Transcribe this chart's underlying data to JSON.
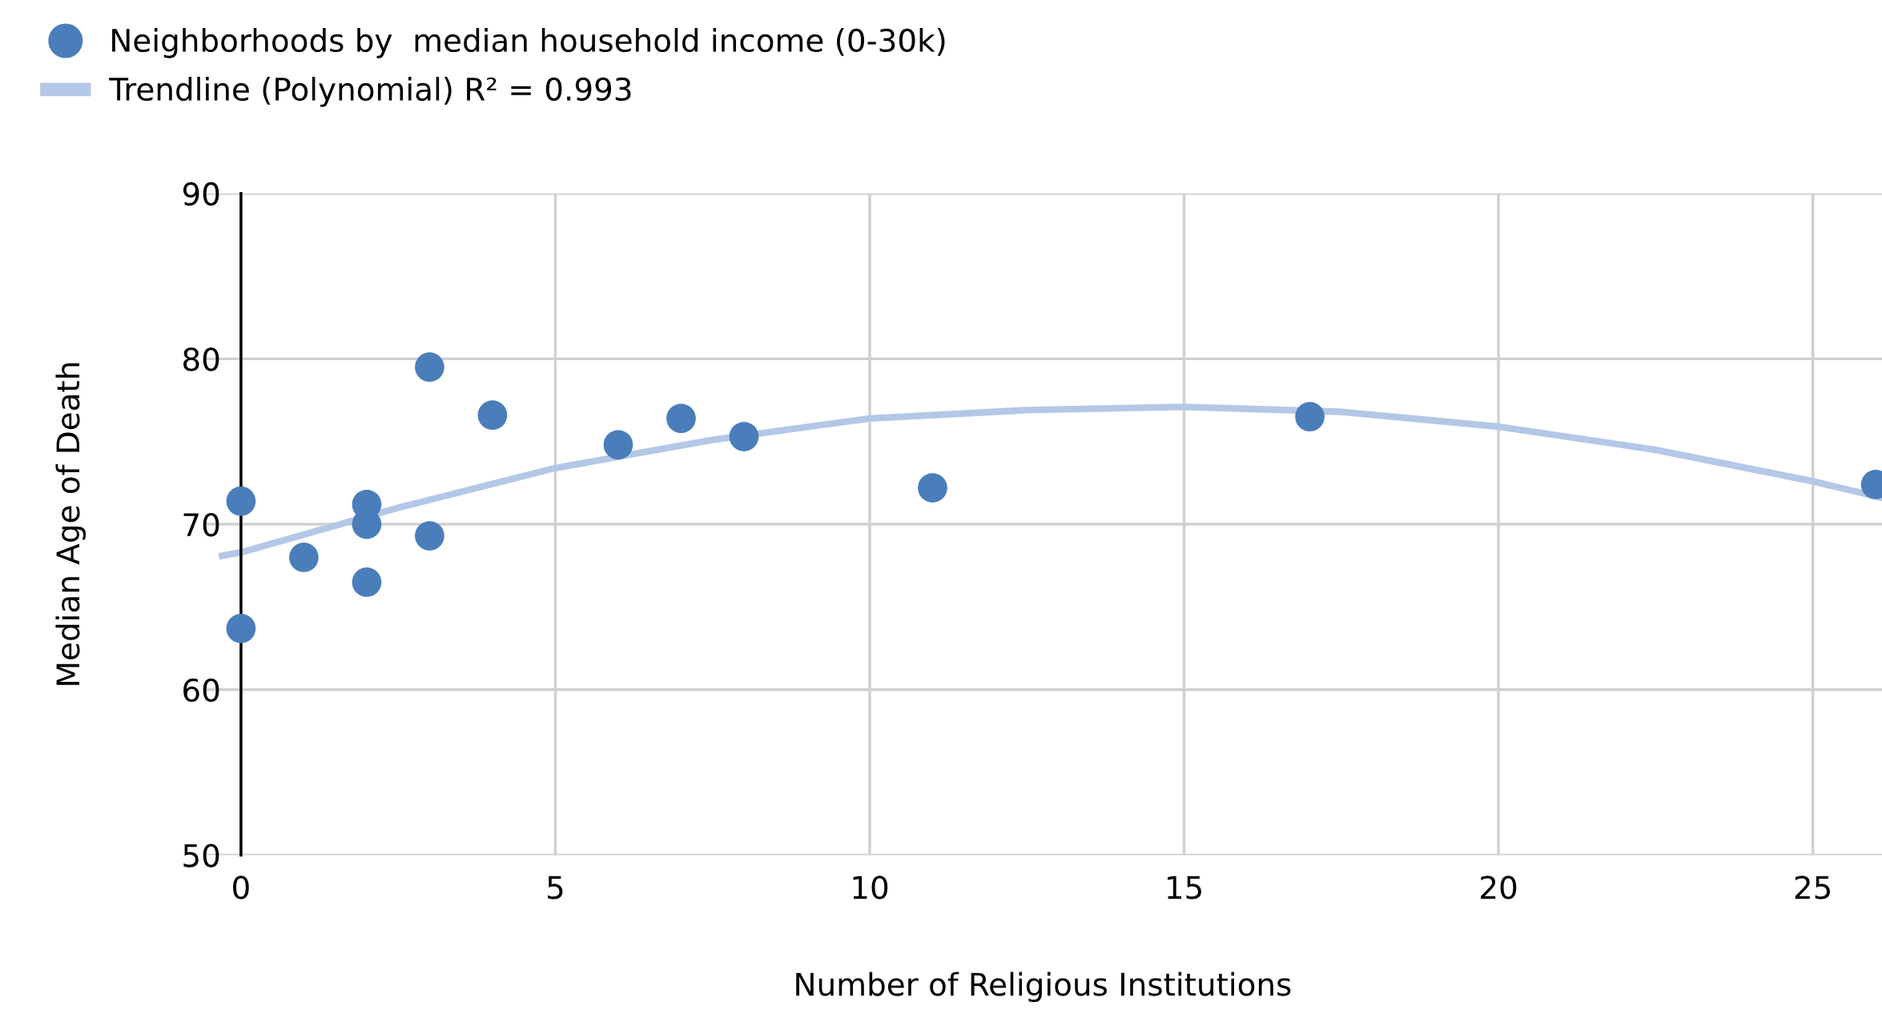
{
  "chart_data": {
    "type": "scatter",
    "xlabel": "Number of Religious Institutions",
    "ylabel": "Median Age of Death",
    "xlim": [
      -0.6,
      26.1
    ],
    "xticks": [
      0,
      5,
      10,
      15,
      20,
      25
    ],
    "ylim": [
      50,
      90
    ],
    "yticks": [
      50,
      60,
      70,
      80,
      90
    ],
    "grid": true,
    "legend": "top left",
    "series": [
      {
        "name": "Neighborhoods by  median household income (0-30k)",
        "color": "#4a7ebb",
        "marker": "circle",
        "x": [
          0,
          0,
          1,
          2,
          2,
          2,
          3,
          3,
          4,
          6,
          7,
          8,
          11,
          17,
          26
        ],
        "values": [
          71.4,
          63.7,
          68.0,
          71.2,
          70.0,
          66.5,
          79.5,
          69.3,
          76.6,
          74.8,
          76.4,
          75.3,
          72.2,
          76.5,
          72.4
        ]
      },
      {
        "name": "Trendline (Polynomial) R² = 0.993",
        "type": "line",
        "color": "#b4c7e7",
        "marker": "none",
        "line_style": "solid",
        "x": [
          -0.3,
          0,
          2.5,
          5,
          7.5,
          10,
          12.5,
          15,
          17.5,
          20,
          22.5,
          25,
          26.1
        ],
        "values": [
          68.1,
          68.3,
          71.0,
          73.4,
          75.1,
          76.4,
          76.9,
          77.1,
          76.8,
          75.9,
          74.5,
          72.6,
          71.6
        ]
      }
    ]
  }
}
